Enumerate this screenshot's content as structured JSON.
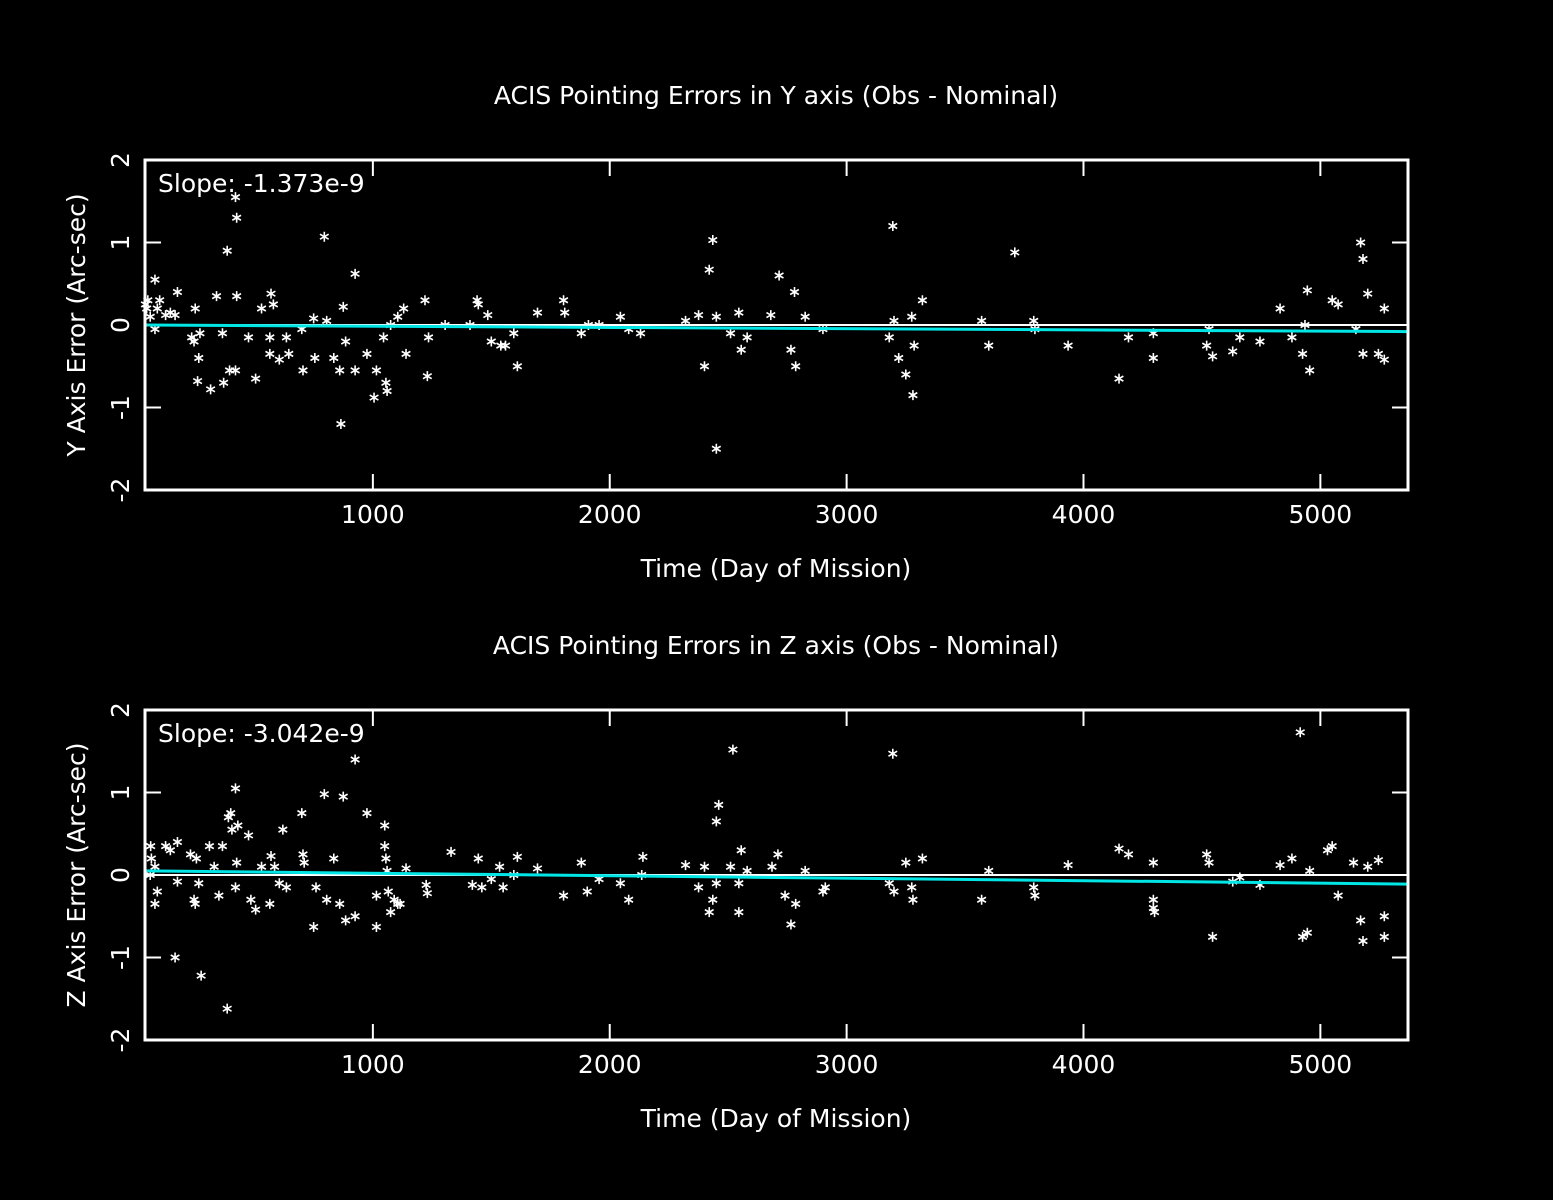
{
  "chart_data": [
    {
      "type": "scatter",
      "title": "ACIS Pointing Errors in Y axis (Obs - Nominal)",
      "x_label": "Time (Day of Mission)",
      "y_label": "Y Axis Error (Arc-sec)",
      "annotation": "Slope: -1.373e-9",
      "xlim": [
        38,
        5370
      ],
      "ylim": [
        -2,
        2
      ],
      "xticks": [
        1000,
        2000,
        3000,
        4000,
        5000
      ],
      "yticks": [
        -2,
        -1,
        0,
        1,
        2
      ],
      "point_color": "#ffffff",
      "fit_color": "#00e5e5",
      "reference_color": "#ffffff",
      "reference_line": 0,
      "fit": {
        "x": [
          38,
          5370
        ],
        "values": [
          0.0,
          -0.08
        ]
      },
      "x": [
        40,
        45,
        50,
        60,
        80,
        80,
        90,
        100,
        125,
        145,
        165,
        175,
        235,
        245,
        250,
        260,
        265,
        270,
        315,
        340,
        365,
        370,
        385,
        395,
        420,
        420,
        425,
        425,
        475,
        505,
        530,
        565,
        565,
        570,
        580,
        605,
        635,
        645,
        700,
        705,
        750,
        755,
        795,
        805,
        835,
        860,
        865,
        875,
        885,
        925,
        925,
        975,
        1005,
        1015,
        1045,
        1055,
        1060,
        1075,
        1105,
        1130,
        1140,
        1220,
        1230,
        1235,
        1305,
        1410,
        1440,
        1445,
        1485,
        1500,
        1540,
        1560,
        1595,
        1610,
        1695,
        1805,
        1810,
        1880,
        1910,
        1955,
        2045,
        2080,
        2130,
        2320,
        2375,
        2400,
        2420,
        2435,
        2450,
        2450,
        2510,
        2545,
        2555,
        2580,
        2680,
        2715,
        2765,
        2780,
        2785,
        2825,
        2900,
        3180,
        3195,
        3200,
        3220,
        3250,
        3275,
        3280,
        3285,
        3320,
        3570,
        3600,
        3710,
        3790,
        3795,
        3935,
        4150,
        4190,
        4295,
        4295,
        4520,
        4530,
        4545,
        4630,
        4660,
        4745,
        4830,
        4880,
        4925,
        4935,
        4945,
        4955,
        5050,
        5075,
        5150,
        5170,
        5180,
        5180,
        5200,
        5245,
        5270,
        5270
      ],
      "values": [
        0.25,
        0.2,
        0.3,
        0.1,
        0.55,
        -0.05,
        0.2,
        0.3,
        0.12,
        0.15,
        0.12,
        0.4,
        -0.15,
        -0.2,
        0.2,
        -0.68,
        -0.4,
        -0.1,
        -0.78,
        0.35,
        -0.1,
        -0.7,
        0.9,
        -0.55,
        1.55,
        -0.55,
        1.3,
        0.35,
        -0.15,
        -0.65,
        0.2,
        -0.15,
        -0.35,
        0.38,
        0.25,
        -0.42,
        -0.15,
        -0.35,
        -0.05,
        -0.55,
        0.08,
        -0.4,
        1.07,
        0.05,
        -0.4,
        -0.55,
        -1.2,
        0.22,
        -0.2,
        0.62,
        -0.55,
        -0.35,
        -0.88,
        -0.55,
        -0.15,
        -0.7,
        -0.8,
        0,
        0.1,
        0.2,
        -0.35,
        0.3,
        -0.62,
        -0.15,
        0,
        0,
        0.3,
        0.25,
        0.12,
        -0.2,
        -0.25,
        -0.25,
        -0.1,
        -0.5,
        0.15,
        0.3,
        0.15,
        -0.1,
        0,
        0,
        0.1,
        -0.05,
        -0.1,
        0.05,
        0.12,
        -0.5,
        0.67,
        1.03,
        0.1,
        -1.5,
        -0.1,
        0.15,
        -0.3,
        -0.15,
        0.12,
        0.6,
        -0.3,
        0.4,
        -0.5,
        0.1,
        -0.05,
        -0.15,
        1.2,
        0.05,
        -0.4,
        -0.6,
        0.1,
        -0.85,
        -0.25,
        0.3,
        0.05,
        -0.25,
        0.88,
        0.05,
        -0.05,
        -0.25,
        -0.65,
        -0.15,
        -0.1,
        -0.4,
        -0.25,
        -0.05,
        -0.38,
        -0.32,
        -0.15,
        -0.2,
        0.2,
        -0.15,
        -0.35,
        0,
        0.42,
        -0.55,
        0.3,
        0.25,
        -0.05,
        1.0,
        0.8,
        -0.35,
        0.38,
        -0.35,
        0.2,
        -0.42
      ]
    },
    {
      "type": "scatter",
      "title": "ACIS Pointing Errors in  Z axis (Obs - Nominal)",
      "x_label": "Time (Day of Mission)",
      "y_label": "Z Axis Error (Arc-sec)",
      "annotation": "Slope: -3.042e-9",
      "xlim": [
        38,
        5370
      ],
      "ylim": [
        -2,
        2
      ],
      "xticks": [
        1000,
        2000,
        3000,
        4000,
        5000
      ],
      "yticks": [
        -2,
        -1,
        0,
        1,
        2
      ],
      "point_color": "#ffffff",
      "fit_color": "#00e5e5",
      "reference_color": "#ffffff",
      "reference_line": 0,
      "fit": {
        "x": [
          38,
          5370
        ],
        "values": [
          0.05,
          -0.11
        ]
      },
      "x": [
        60,
        65,
        62,
        80,
        90,
        80,
        125,
        145,
        165,
        175,
        175,
        230,
        245,
        250,
        255,
        265,
        275,
        310,
        330,
        350,
        365,
        385,
        390,
        400,
        405,
        420,
        425,
        420,
        430,
        475,
        485,
        505,
        530,
        565,
        570,
        585,
        605,
        620,
        635,
        700,
        705,
        710,
        750,
        760,
        795,
        805,
        835,
        860,
        875,
        885,
        925,
        925,
        975,
        1015,
        1015,
        1050,
        1050,
        1055,
        1060,
        1065,
        1075,
        1090,
        1105,
        1115,
        1140,
        1225,
        1230,
        1330,
        1420,
        1445,
        1460,
        1500,
        1535,
        1550,
        1595,
        1610,
        1695,
        1805,
        1880,
        1905,
        1955,
        2045,
        2080,
        2140,
        2135,
        2320,
        2375,
        2400,
        2420,
        2435,
        2450,
        2460,
        2450,
        2510,
        2520,
        2545,
        2545,
        2555,
        2580,
        2685,
        2710,
        2740,
        2765,
        2785,
        2825,
        2900,
        2910,
        3180,
        3195,
        3200,
        3250,
        3275,
        3280,
        3320,
        3570,
        3600,
        3790,
        3795,
        3935,
        4150,
        4190,
        4295,
        4295,
        4295,
        4300,
        4520,
        4530,
        4545,
        4630,
        4660,
        4745,
        4830,
        4880,
        4915,
        4925,
        4945,
        4955,
        5030,
        5050,
        5075,
        5140,
        5170,
        5180,
        5200,
        5245,
        5270,
        5270
      ],
      "values": [
        0,
        0.2,
        0.35,
        -0.35,
        -0.2,
        0.1,
        0.35,
        0.3,
        -1.0,
        -0.08,
        0.4,
        0.25,
        -0.3,
        -0.35,
        0.2,
        -0.1,
        -1.22,
        0.35,
        0.1,
        -0.25,
        0.35,
        -1.62,
        0.7,
        0.75,
        0.55,
        1.05,
        0.15,
        -0.15,
        0.6,
        0.48,
        -0.3,
        -0.42,
        0.1,
        -0.35,
        0.23,
        0.1,
        -0.1,
        0.55,
        -0.15,
        0.75,
        0.25,
        0.15,
        -0.63,
        -0.15,
        0.98,
        -0.3,
        0.2,
        -0.35,
        0.95,
        -0.55,
        1.4,
        -0.5,
        0.75,
        -0.63,
        -0.25,
        0.6,
        0.35,
        0.2,
        0.05,
        -0.2,
        -0.45,
        -0.3,
        -0.35,
        -0.35,
        0.08,
        -0.12,
        -0.22,
        0.28,
        -0.12,
        0.2,
        -0.15,
        -0.05,
        0.1,
        -0.15,
        0,
        0.22,
        0.08,
        -0.25,
        0.15,
        -0.2,
        -0.05,
        -0.1,
        -0.3,
        0.22,
        0,
        0.12,
        -0.15,
        0.1,
        -0.45,
        -0.3,
        0.65,
        0.85,
        -0.1,
        0.1,
        1.52,
        -0.45,
        -0.1,
        0.3,
        0.05,
        0.1,
        0.25,
        -0.25,
        -0.6,
        -0.35,
        0.05,
        -0.2,
        -0.15,
        -0.1,
        1.47,
        -0.2,
        0.15,
        -0.15,
        -0.3,
        0.2,
        -0.3,
        0.05,
        -0.15,
        -0.25,
        0.12,
        0.32,
        0.25,
        0.15,
        -0.3,
        -0.4,
        -0.45,
        0.25,
        0.15,
        -0.75,
        -0.08,
        -0.03,
        -0.12,
        0.12,
        0.2,
        1.73,
        -0.75,
        -0.7,
        0.05,
        0.3,
        0.35,
        -0.25,
        0.15,
        -0.55,
        -0.8,
        0.1,
        0.18,
        -0.5,
        -0.75
      ]
    }
  ]
}
